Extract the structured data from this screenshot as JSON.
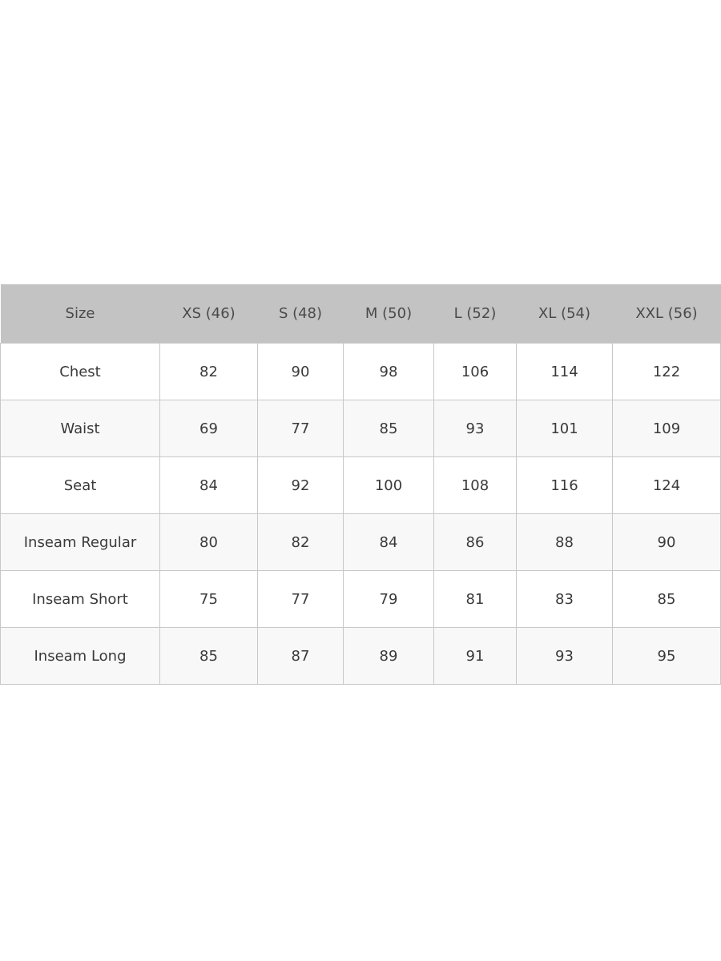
{
  "table": {
    "headers": [
      "Size",
      "XS (46)",
      "S (48)",
      "M (50)",
      "L (52)",
      "XL (54)",
      "XXL (56)"
    ],
    "rows": [
      [
        "Chest",
        "82",
        "90",
        "98",
        "106",
        "114",
        "122"
      ],
      [
        "Waist",
        "69",
        "77",
        "85",
        "93",
        "101",
        "109"
      ],
      [
        "Seat",
        "84",
        "92",
        "100",
        "108",
        "116",
        "124"
      ],
      [
        "Inseam Regular",
        "80",
        "82",
        "84",
        "86",
        "88",
        "90"
      ],
      [
        "Inseam Short",
        "75",
        "77",
        "79",
        "81",
        "83",
        "85"
      ],
      [
        "Inseam Long",
        "85",
        "87",
        "89",
        "91",
        "93",
        "95"
      ]
    ]
  },
  "colors": {
    "header_bg": "#c3c3c3",
    "border": "#c8c8c8",
    "alt_row": "#f8f8f8",
    "text": "#3a3a3a"
  }
}
